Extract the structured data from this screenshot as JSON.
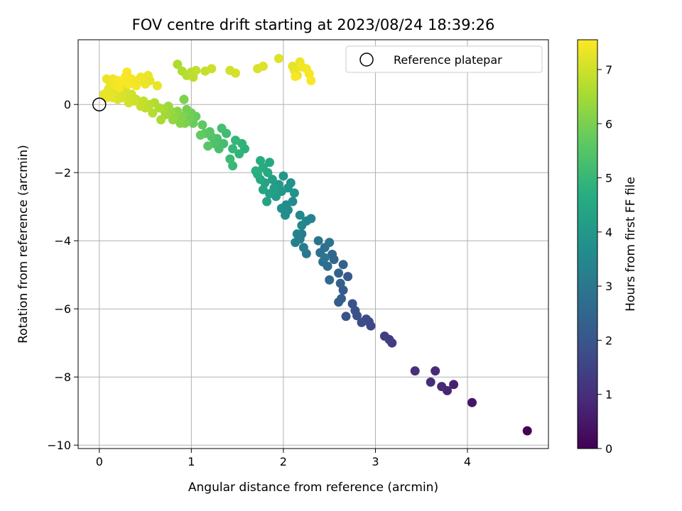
{
  "chart_data": {
    "type": "scatter",
    "title": "FOV centre drift starting at 2023/08/24 18:39:26",
    "xlabel": "Angular distance from reference (arcmin)",
    "ylabel": "Rotation from reference (arcmin)",
    "xlim": [
      -0.23,
      4.88
    ],
    "ylim": [
      -10.1,
      1.9
    ],
    "xticks": [
      0,
      1,
      2,
      3,
      4
    ],
    "yticks": [
      -10,
      -8,
      -6,
      -4,
      -2,
      0
    ],
    "grid": true,
    "legend": {
      "position": "top-right",
      "entries": [
        "Reference platepar"
      ]
    },
    "reference_point": {
      "x": 0,
      "y": 0
    },
    "colorbar": {
      "label": "Hours from first FF file",
      "range": [
        0,
        7.55
      ],
      "ticks": [
        0,
        1,
        2,
        3,
        4,
        5,
        6,
        7
      ],
      "colormap": "viridis"
    },
    "points": [
      [
        4.65,
        -9.58,
        0.05
      ],
      [
        4.05,
        -8.75,
        0.45
      ],
      [
        3.85,
        -8.22,
        0.7
      ],
      [
        3.78,
        -8.4,
        0.8
      ],
      [
        3.72,
        -8.28,
        0.85
      ],
      [
        3.65,
        -7.82,
        0.9
      ],
      [
        3.6,
        -8.15,
        0.95
      ],
      [
        3.43,
        -7.82,
        1.05
      ],
      [
        3.18,
        -7.0,
        1.3
      ],
      [
        3.15,
        -6.9,
        1.35
      ],
      [
        3.1,
        -6.8,
        1.4
      ],
      [
        2.95,
        -6.5,
        1.6
      ],
      [
        2.93,
        -6.38,
        1.65
      ],
      [
        2.9,
        -6.3,
        1.7
      ],
      [
        2.85,
        -6.4,
        1.75
      ],
      [
        2.8,
        -6.2,
        1.8
      ],
      [
        2.78,
        -6.05,
        1.85
      ],
      [
        2.75,
        -5.85,
        1.9
      ],
      [
        2.68,
        -6.22,
        1.95
      ],
      [
        2.7,
        -5.05,
        2.1
      ],
      [
        2.65,
        -5.45,
        2.15
      ],
      [
        2.63,
        -5.7,
        2.2
      ],
      [
        2.6,
        -5.8,
        2.25
      ],
      [
        2.62,
        -5.25,
        2.3
      ],
      [
        2.65,
        -4.7,
        2.35
      ],
      [
        2.6,
        -4.95,
        2.4
      ],
      [
        2.55,
        -4.55,
        2.5
      ],
      [
        2.53,
        -4.4,
        2.55
      ],
      [
        2.5,
        -5.15,
        2.6
      ],
      [
        2.48,
        -4.75,
        2.65
      ],
      [
        2.45,
        -4.2,
        2.7
      ],
      [
        2.43,
        -4.62,
        2.75
      ],
      [
        2.4,
        -4.35,
        2.8
      ],
      [
        2.38,
        -4.0,
        2.85
      ],
      [
        2.5,
        -4.05,
        2.9
      ],
      [
        2.45,
        -4.5,
        2.95
      ],
      [
        2.25,
        -4.38,
        3.05
      ],
      [
        2.22,
        -4.2,
        3.1
      ],
      [
        2.2,
        -3.8,
        3.15
      ],
      [
        2.18,
        -3.95,
        3.2
      ],
      [
        2.15,
        -3.8,
        3.25
      ],
      [
        2.13,
        -4.05,
        3.3
      ],
      [
        2.3,
        -3.35,
        3.35
      ],
      [
        2.25,
        -3.42,
        3.4
      ],
      [
        2.2,
        -3.55,
        3.45
      ],
      [
        2.18,
        -3.25,
        3.5
      ],
      [
        2.1,
        -2.85,
        3.55
      ],
      [
        2.05,
        -3.1,
        3.6
      ],
      [
        2.03,
        -2.95,
        3.65
      ],
      [
        2.02,
        -3.25,
        3.7
      ],
      [
        1.98,
        -3.05,
        3.75
      ],
      [
        2.12,
        -2.6,
        3.8
      ],
      [
        2.08,
        -2.3,
        3.85
      ],
      [
        2.05,
        -2.45,
        3.9
      ],
      [
        2.0,
        -2.1,
        3.95
      ],
      [
        1.98,
        -2.55,
        4.0
      ],
      [
        1.95,
        -2.35,
        4.05
      ],
      [
        1.92,
        -2.7,
        4.1
      ],
      [
        1.9,
        -2.45,
        4.15
      ],
      [
        1.88,
        -2.2,
        4.2
      ],
      [
        1.85,
        -2.62,
        4.25
      ],
      [
        1.82,
        -2.85,
        4.3
      ],
      [
        1.8,
        -2.3,
        4.35
      ],
      [
        1.78,
        -2.5,
        4.4
      ],
      [
        1.75,
        -2.2,
        4.45
      ],
      [
        1.85,
        -1.7,
        4.5
      ],
      [
        1.83,
        -2.0,
        4.55
      ],
      [
        1.78,
        -1.85,
        4.6
      ],
      [
        1.75,
        -1.65,
        4.65
      ],
      [
        1.72,
        -2.05,
        4.7
      ],
      [
        1.7,
        -1.95,
        4.75
      ],
      [
        1.58,
        -1.3,
        4.8
      ],
      [
        1.55,
        -1.15,
        4.85
      ],
      [
        1.52,
        -1.45,
        4.9
      ],
      [
        1.48,
        -1.05,
        4.95
      ],
      [
        1.45,
        -1.3,
        5.0
      ],
      [
        1.45,
        -1.8,
        5.05
      ],
      [
        1.42,
        -1.6,
        5.1
      ],
      [
        1.38,
        -0.85,
        5.15
      ],
      [
        1.35,
        -1.15,
        5.2
      ],
      [
        1.33,
        -0.7,
        5.25
      ],
      [
        1.3,
        -1.3,
        5.3
      ],
      [
        1.28,
        -1.0,
        5.35
      ],
      [
        1.25,
        -1.15,
        5.4
      ],
      [
        1.22,
        -0.95,
        5.45
      ],
      [
        1.2,
        -0.8,
        5.5
      ],
      [
        1.18,
        -1.22,
        5.55
      ],
      [
        1.15,
        -0.85,
        5.6
      ],
      [
        1.12,
        -0.6,
        5.65
      ],
      [
        1.1,
        -0.9,
        5.7
      ],
      [
        1.05,
        -0.35,
        5.75
      ],
      [
        1.02,
        -0.55,
        5.8
      ],
      [
        1.0,
        -0.25,
        5.85
      ],
      [
        0.98,
        -0.4,
        5.9
      ],
      [
        0.95,
        -0.15,
        5.95
      ],
      [
        0.93,
        -0.55,
        6.0
      ],
      [
        0.92,
        0.15,
        6.05
      ],
      [
        0.9,
        -0.35,
        6.1
      ],
      [
        0.88,
        -0.55,
        6.15
      ],
      [
        0.85,
        -0.2,
        6.2
      ],
      [
        0.82,
        -0.35,
        6.25
      ],
      [
        0.8,
        -0.45,
        6.3
      ],
      [
        0.78,
        -0.2,
        6.35
      ],
      [
        0.75,
        -0.05,
        6.4
      ],
      [
        0.72,
        -0.3,
        6.45
      ],
      [
        0.7,
        -0.15,
        6.5
      ],
      [
        0.67,
        -0.45,
        6.55
      ],
      [
        0.65,
        -0.1,
        6.6
      ],
      [
        0.6,
        0.05,
        6.65
      ],
      [
        0.58,
        -0.25,
        6.7
      ],
      [
        0.55,
        0.0,
        6.75
      ],
      [
        0.5,
        -0.1,
        6.8
      ],
      [
        0.48,
        0.1,
        6.85
      ],
      [
        0.45,
        -0.05,
        6.9
      ],
      [
        0.4,
        0.15,
        6.95
      ],
      [
        0.38,
        0.1,
        7.0
      ],
      [
        0.35,
        0.3,
        7.0
      ],
      [
        0.32,
        0.05,
        7.05
      ],
      [
        0.3,
        0.25,
        7.05
      ],
      [
        0.28,
        0.45,
        7.1
      ],
      [
        0.25,
        0.2,
        7.1
      ],
      [
        0.22,
        0.35,
        7.15
      ],
      [
        0.2,
        0.15,
        7.15
      ],
      [
        0.18,
        0.4,
        7.2
      ],
      [
        0.15,
        0.2,
        7.2
      ],
      [
        0.12,
        0.3,
        7.25
      ],
      [
        0.1,
        0.45,
        7.25
      ],
      [
        0.08,
        0.2,
        7.3
      ],
      [
        0.05,
        0.3,
        7.3
      ],
      [
        0.08,
        0.75,
        7.35
      ],
      [
        0.12,
        0.6,
        7.35
      ],
      [
        0.15,
        0.75,
        7.4
      ],
      [
        0.18,
        0.55,
        7.4
      ],
      [
        0.2,
        0.7,
        7.45
      ],
      [
        0.22,
        0.5,
        7.45
      ],
      [
        0.25,
        0.65,
        7.5
      ],
      [
        0.28,
        0.8,
        7.5
      ],
      [
        0.3,
        0.95,
        7.5
      ],
      [
        0.32,
        0.6,
        7.5
      ],
      [
        0.35,
        0.75,
        7.45
      ],
      [
        0.4,
        0.55,
        7.45
      ],
      [
        0.42,
        0.7,
        7.4
      ],
      [
        0.45,
        0.8,
        7.4
      ],
      [
        0.5,
        0.6,
        7.35
      ],
      [
        0.53,
        0.85,
        7.35
      ],
      [
        0.55,
        0.7,
        7.3
      ],
      [
        0.63,
        0.55,
        7.3
      ],
      [
        0.85,
        1.18,
        6.6
      ],
      [
        0.9,
        0.98,
        6.65
      ],
      [
        0.95,
        0.85,
        6.7
      ],
      [
        1.0,
        0.95,
        6.75
      ],
      [
        1.02,
        0.8,
        6.8
      ],
      [
        1.05,
        1.0,
        6.85
      ],
      [
        1.15,
        0.98,
        6.9
      ],
      [
        1.22,
        1.05,
        6.95
      ],
      [
        1.42,
        1.0,
        7.0
      ],
      [
        1.48,
        0.92,
        7.05
      ],
      [
        1.72,
        1.05,
        7.1
      ],
      [
        1.78,
        1.12,
        7.15
      ],
      [
        1.95,
        1.35,
        7.2
      ],
      [
        2.1,
        1.12,
        7.25
      ],
      [
        2.12,
        1.0,
        7.3
      ],
      [
        2.15,
        0.85,
        7.3
      ],
      [
        2.18,
        1.25,
        7.35
      ],
      [
        2.2,
        1.1,
        7.4
      ],
      [
        2.25,
        1.05,
        7.45
      ],
      [
        2.28,
        0.9,
        7.45
      ],
      [
        2.3,
        0.7,
        7.5
      ],
      [
        2.13,
        0.82,
        7.5
      ]
    ]
  }
}
